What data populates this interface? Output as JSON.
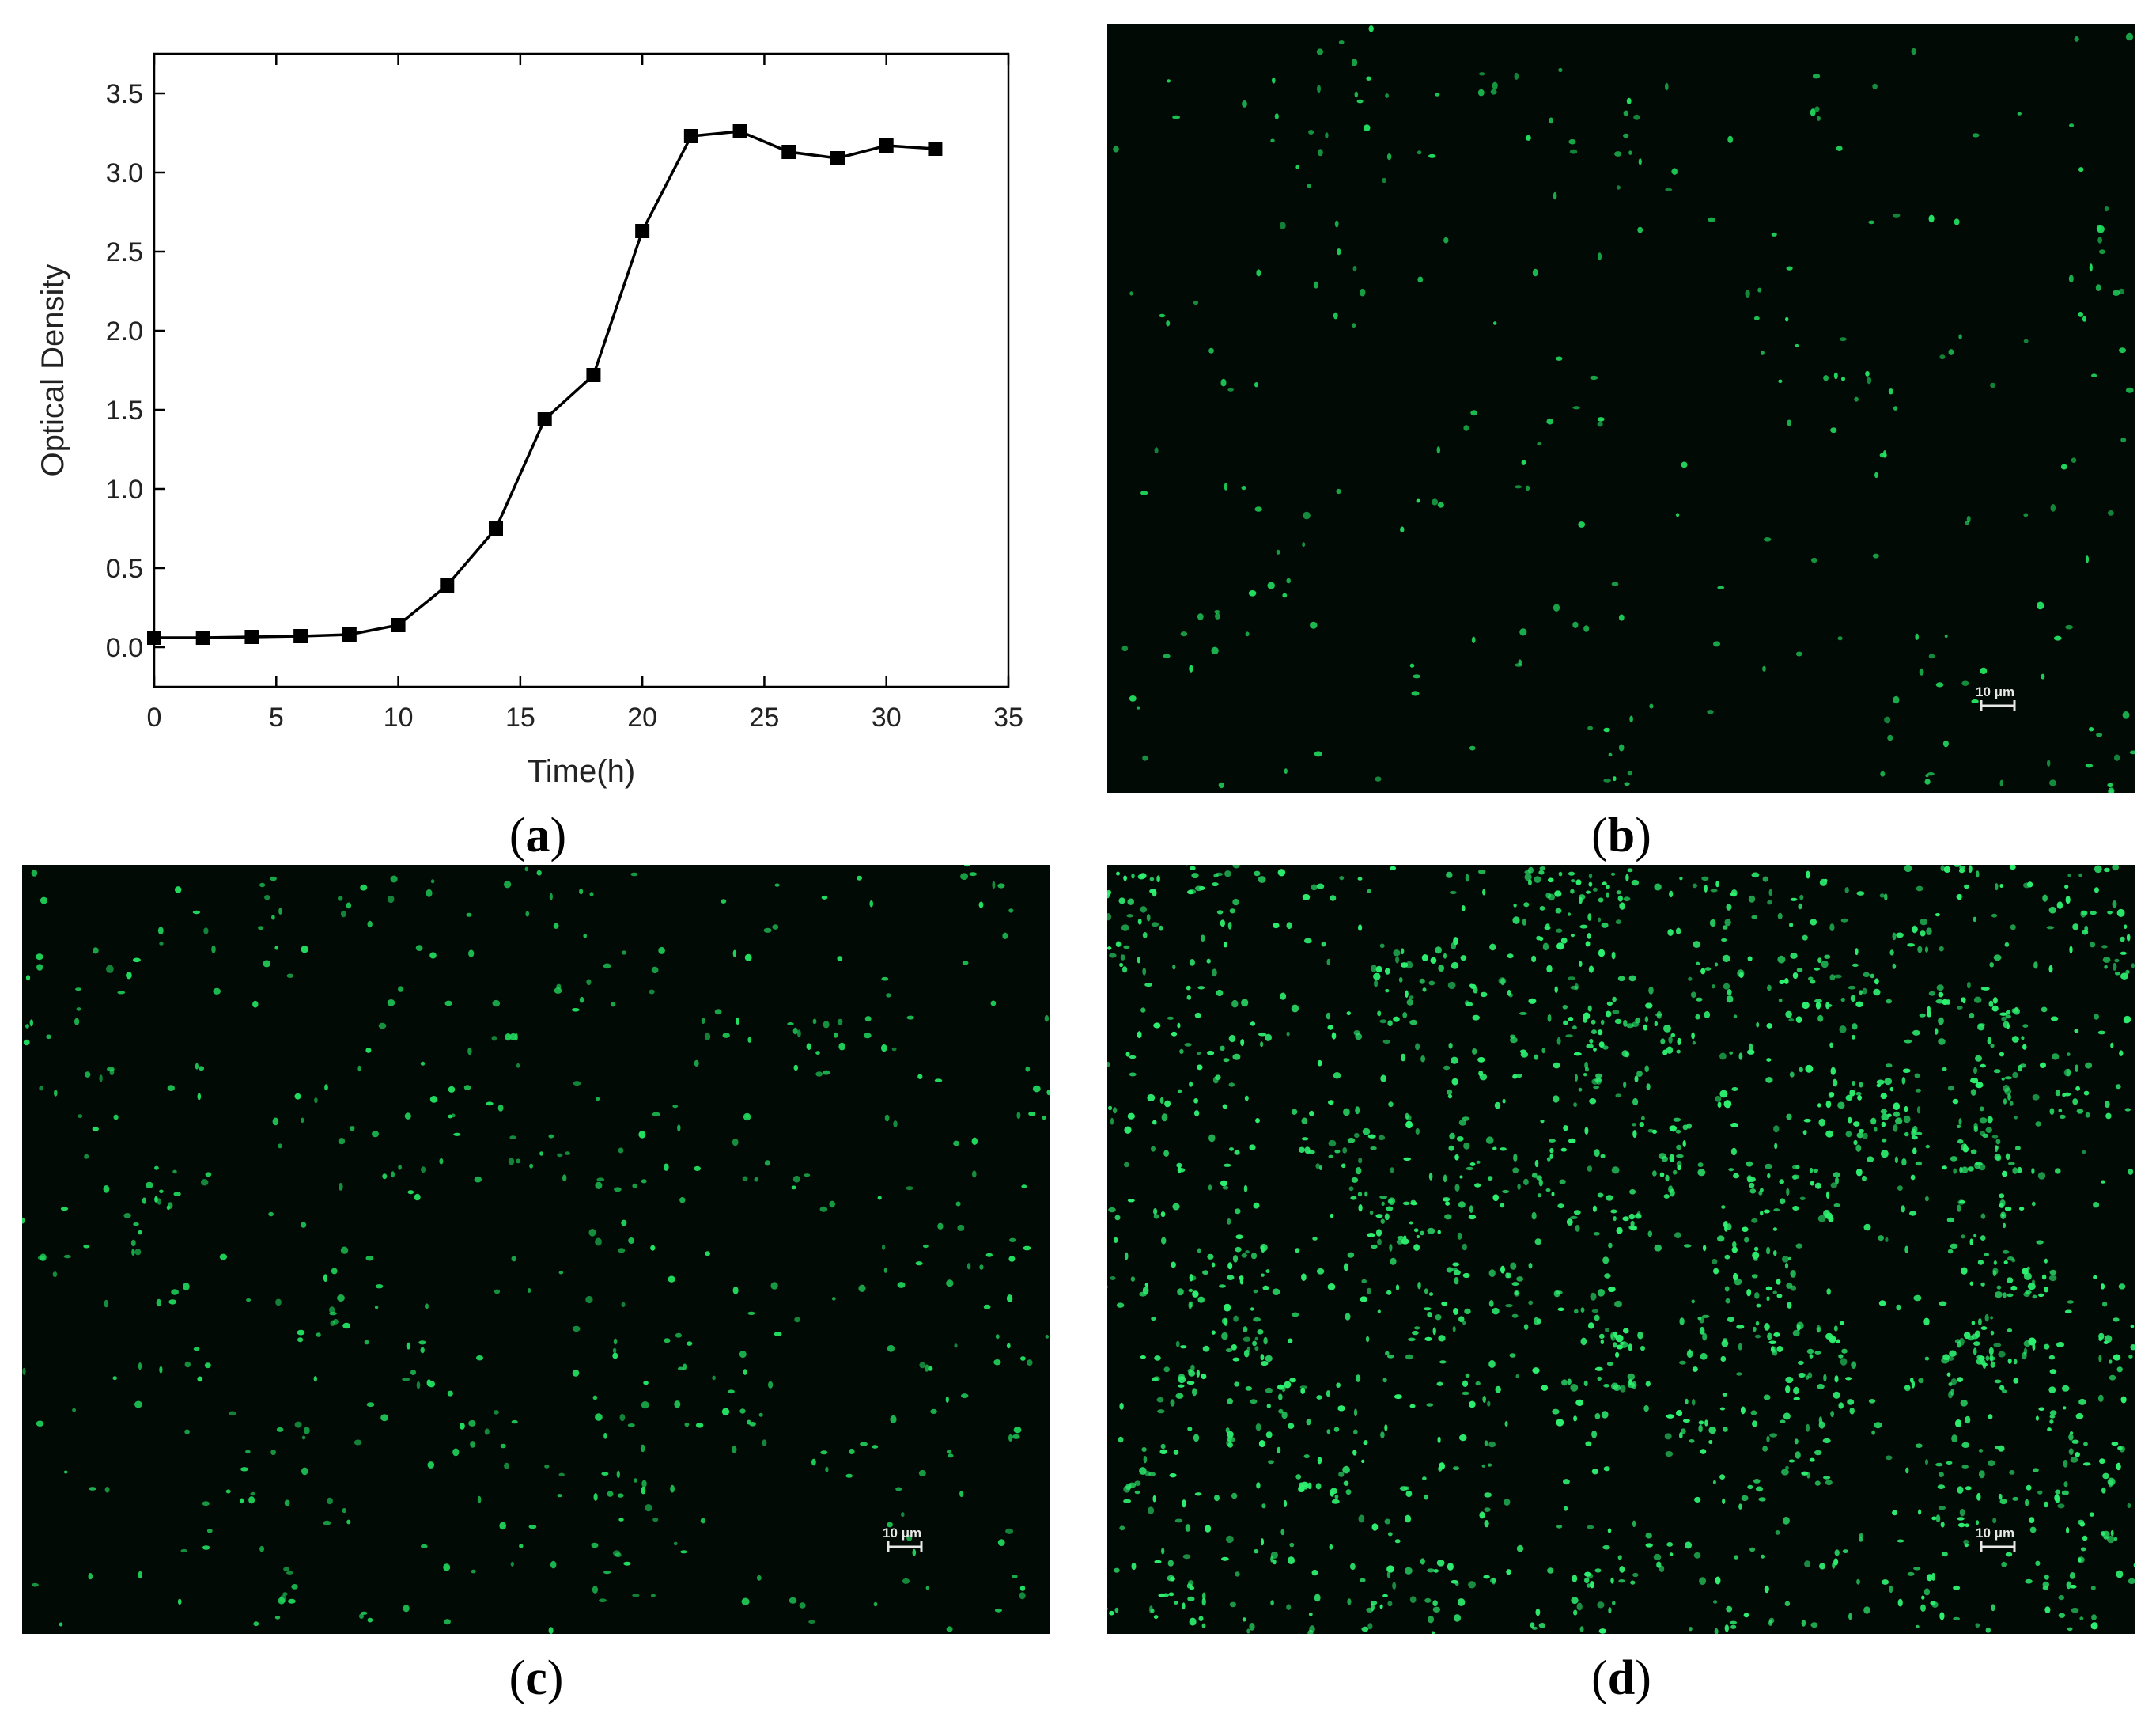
{
  "chart_data": {
    "type": "line",
    "xlabel": "Time(h)",
    "ylabel": "Optical Density",
    "xlim": [
      0,
      35
    ],
    "ylim": [
      -0.25,
      3.75
    ],
    "x_ticks": [
      "0",
      "5",
      "10",
      "15",
      "20",
      "25",
      "30",
      "35"
    ],
    "y_ticks": [
      "0.0",
      "0.5",
      "1.0",
      "1.5",
      "2.0",
      "2.5",
      "3.0",
      "3.5"
    ],
    "x_tick_values": [
      0,
      5,
      10,
      15,
      20,
      25,
      30,
      35
    ],
    "y_tick_values": [
      0.0,
      0.5,
      1.0,
      1.5,
      2.0,
      2.5,
      3.0,
      3.5
    ],
    "marker": "square",
    "series": [
      {
        "x": [
          0,
          2,
          4,
          6,
          8,
          10,
          12,
          14,
          16,
          18,
          20,
          22,
          24,
          26,
          28,
          30,
          32
        ],
        "values": [
          0.06,
          0.06,
          0.065,
          0.07,
          0.08,
          0.14,
          0.39,
          0.75,
          1.44,
          1.72,
          2.63,
          3.23,
          3.26,
          3.13,
          3.09,
          3.17,
          3.15
        ]
      }
    ],
    "grid": false,
    "color": "#000000"
  },
  "captions": {
    "a": "a",
    "b": "b",
    "c": "c",
    "d": "d"
  },
  "scale_bars": {
    "b": "10 μm",
    "c": "10 μm",
    "d": "10 μm"
  },
  "micrographs": {
    "b": {
      "density": "sparse",
      "color": "#22e060"
    },
    "c": {
      "density": "moderate",
      "color": "#22e060"
    },
    "d": {
      "density": "dense",
      "color": "#2ef070"
    }
  }
}
